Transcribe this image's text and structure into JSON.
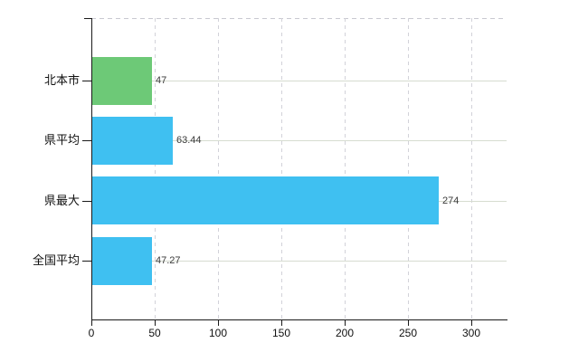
{
  "chart_data": {
    "type": "bar",
    "orientation": "horizontal",
    "title": "",
    "xlabel": "",
    "ylabel": "",
    "categories": [
      "北本市",
      "県平均",
      "県最大",
      "全国平均"
    ],
    "values": [
      47,
      63.44,
      274,
      47.27
    ],
    "value_labels": [
      "47",
      "63.44",
      "274",
      "47.27"
    ],
    "series": [
      {
        "name": "",
        "values": [
          47,
          63.44,
          274,
          47.27
        ]
      }
    ],
    "bar_colors": [
      "#6dc977",
      "#3fc0f1",
      "#3fc0f1",
      "#3fc0f1"
    ],
    "x_ticks": [
      0,
      50,
      100,
      150,
      200,
      250,
      300
    ],
    "x_tick_labels": [
      "0",
      "50",
      "100",
      "150",
      "200",
      "250",
      "300"
    ],
    "xlim": [
      0,
      328
    ],
    "grid": true,
    "gridline_style": "vertical dashed, horizontal solid at category centers, dashed top border",
    "legend": false
  },
  "colors": {
    "bar_green": "#6dc977",
    "bar_blue": "#3fc0f1",
    "axis": "#1a1a1a",
    "hgrid": "#d6dcd0",
    "vgrid": "#d2d2d9",
    "text": "#111111",
    "value_text": "#3a3a3a",
    "background": "#ffffff"
  }
}
